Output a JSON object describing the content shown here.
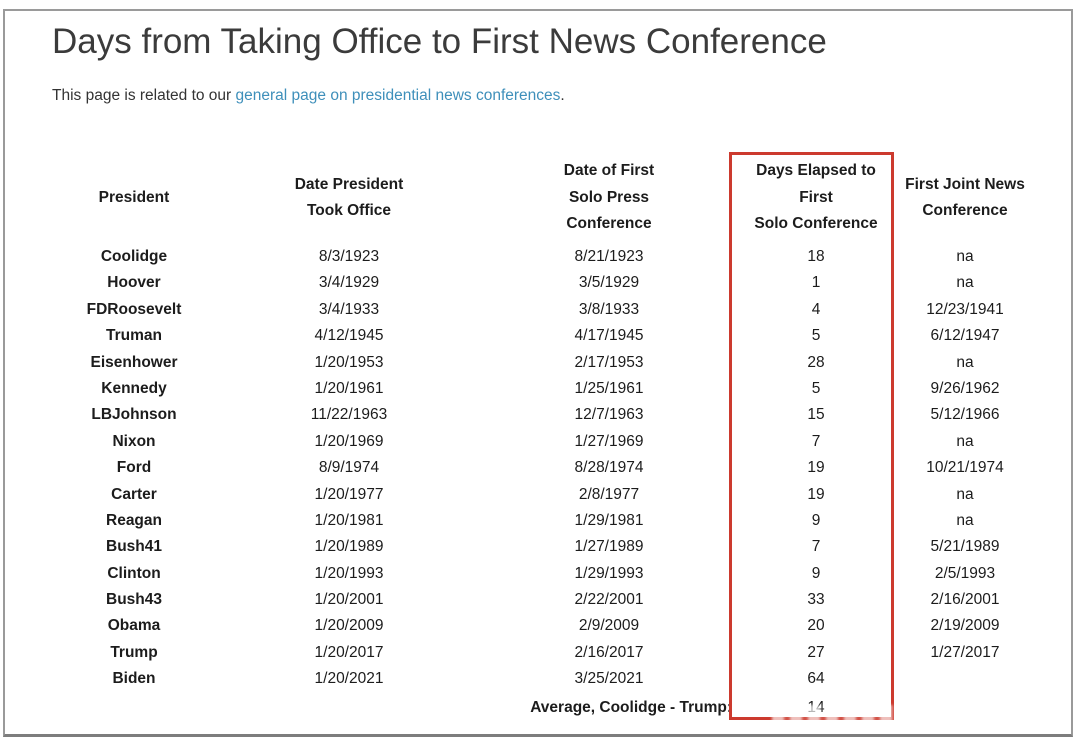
{
  "page": {
    "title": "Days from Taking Office to First News Conference",
    "intro": {
      "prefix": "This page is related to our ",
      "link_text": "general page on presidential news conferences",
      "suffix": "."
    }
  },
  "colors": {
    "link_blue": "#3e8fba",
    "highlight_red": "#cc3a2e"
  },
  "table": {
    "columns": [
      {
        "id": "president",
        "lines": [
          "President"
        ]
      },
      {
        "id": "took_office",
        "lines": [
          "Date President",
          "Took Office"
        ]
      },
      {
        "id": "first_solo",
        "lines": [
          "Date of First",
          "Solo Press",
          "Conference"
        ]
      },
      {
        "id": "days_elapsed",
        "lines": [
          "Days Elapsed to",
          "First",
          "Solo Conference"
        ],
        "highlighted": true
      },
      {
        "id": "first_joint",
        "lines": [
          "First Joint News",
          "Conference"
        ]
      }
    ],
    "rows": [
      {
        "president": "Coolidge",
        "took_office": "8/3/1923",
        "first_solo": "8/21/1923",
        "first_solo_is_link": false,
        "days": "18",
        "first_joint": "na"
      },
      {
        "president": "Hoover",
        "took_office": "3/4/1929",
        "first_solo": "3/5/1929",
        "first_solo_is_link": true,
        "days": "1",
        "first_joint": "na"
      },
      {
        "president": "FDRoosevelt",
        "took_office": "3/4/1933",
        "first_solo": "3/8/1933",
        "first_solo_is_link": true,
        "days": "4",
        "first_joint": "12/23/1941"
      },
      {
        "president": "Truman",
        "took_office": "4/12/1945",
        "first_solo": "4/17/1945",
        "first_solo_is_link": true,
        "days": "5",
        "first_joint": "6/12/1947"
      },
      {
        "president": "Eisenhower",
        "took_office": "1/20/1953",
        "first_solo": "2/17/1953",
        "first_solo_is_link": true,
        "days": "28",
        "first_joint": "na"
      },
      {
        "president": "Kennedy",
        "took_office": "1/20/1961",
        "first_solo": "1/25/1961",
        "first_solo_is_link": true,
        "days": "5",
        "first_joint": "9/26/1962"
      },
      {
        "president": "LBJohnson",
        "took_office": "11/22/1963",
        "first_solo": "12/7/1963",
        "first_solo_is_link": true,
        "days": "15",
        "first_joint": "5/12/1966"
      },
      {
        "president": "Nixon",
        "took_office": "1/20/1969",
        "first_solo": "1/27/1969",
        "first_solo_is_link": true,
        "days": "7",
        "first_joint": "na"
      },
      {
        "president": "Ford",
        "took_office": "8/9/1974",
        "first_solo": "8/28/1974",
        "first_solo_is_link": true,
        "days": "19",
        "first_joint": "10/21/1974"
      },
      {
        "president": "Carter",
        "took_office": "1/20/1977",
        "first_solo": "2/8/1977",
        "first_solo_is_link": true,
        "days": "19",
        "first_joint": "na"
      },
      {
        "president": "Reagan",
        "took_office": "1/20/1981",
        "first_solo": "1/29/1981",
        "first_solo_is_link": true,
        "days": "9",
        "first_joint": "na"
      },
      {
        "president": "Bush41",
        "took_office": "1/20/1989",
        "first_solo": "1/27/1989",
        "first_solo_is_link": true,
        "days": "7",
        "first_joint": "5/21/1989"
      },
      {
        "president": "Clinton",
        "took_office": "1/20/1993",
        "first_solo": "1/29/1993",
        "first_solo_is_link": true,
        "days": "9",
        "first_joint": "2/5/1993"
      },
      {
        "president": "Bush43",
        "took_office": "1/20/2001",
        "first_solo": "2/22/2001",
        "first_solo_is_link": true,
        "days": "33",
        "first_joint": "2/16/2001"
      },
      {
        "president": "Obama",
        "took_office": "1/20/2009",
        "first_solo": "2/9/2009",
        "first_solo_is_link": true,
        "days": "20",
        "first_joint": "2/19/2009"
      },
      {
        "president": "Trump",
        "took_office": "1/20/2017",
        "first_solo": "2/16/2017",
        "first_solo_is_link": true,
        "days": "27",
        "first_joint": "1/27/2017"
      },
      {
        "president": "Biden",
        "took_office": "1/20/2021",
        "first_solo": "3/25/2021",
        "first_solo_is_link": false,
        "days": "64",
        "first_joint": ""
      }
    ],
    "average": {
      "label": "Average, Coolidge - Trump:",
      "value": "14"
    }
  }
}
